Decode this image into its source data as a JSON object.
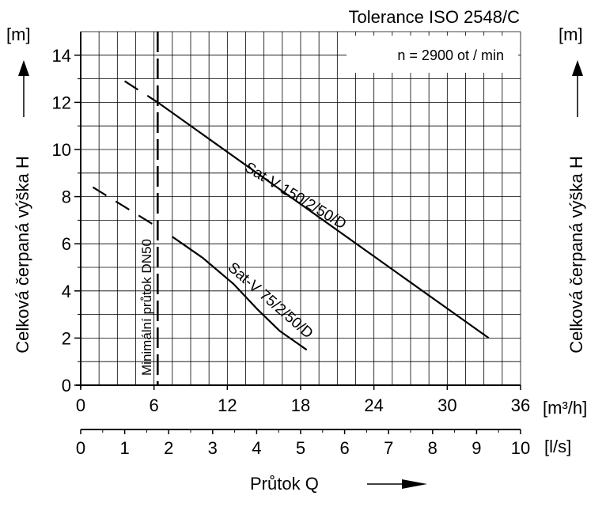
{
  "chart_data": {
    "type": "line",
    "title": "Tolerance ISO 2548/C",
    "annotation": "n = 2900  ot / min",
    "ylabel": "Celková čerpaná výška H",
    "ylabel_right": "Celková čerpaná výška H",
    "y_unit": "[m]",
    "y_unit_right": "[m]",
    "ylim": [
      0,
      15
    ],
    "y_ticks": [
      0,
      2,
      4,
      6,
      8,
      10,
      12,
      14
    ],
    "xlabel": "Průtok  Q",
    "x_unit": "[m³/h]",
    "xlim": [
      0,
      36
    ],
    "x_ticks": [
      0,
      6,
      12,
      18,
      24,
      30,
      36
    ],
    "x2_unit": "[l/s]",
    "x2lim": [
      0,
      10
    ],
    "x2_ticks": [
      0,
      1,
      2,
      3,
      4,
      5,
      6,
      7,
      8,
      9,
      10
    ],
    "grid": true,
    "minimum_flow": {
      "label": "Minimální průtok DN50",
      "x": 6.3
    },
    "series": [
      {
        "name": "Sat-V 150/2/50/D",
        "dashed": [
          [
            3.6,
            12.9
          ],
          [
            6.3,
            12.0
          ]
        ],
        "solid": [
          [
            6.3,
            12.0
          ],
          [
            33.4,
            2.0
          ]
        ]
      },
      {
        "name": "Sat-V 75/2/50/D",
        "dashed": [
          [
            1.0,
            8.4
          ],
          [
            6.3,
            6.7
          ]
        ],
        "solid": [
          [
            7.5,
            6.3
          ],
          [
            10.0,
            5.4
          ],
          [
            12.5,
            4.3
          ],
          [
            14.5,
            3.2
          ],
          [
            16.3,
            2.3
          ],
          [
            18.5,
            1.5
          ]
        ]
      }
    ]
  }
}
